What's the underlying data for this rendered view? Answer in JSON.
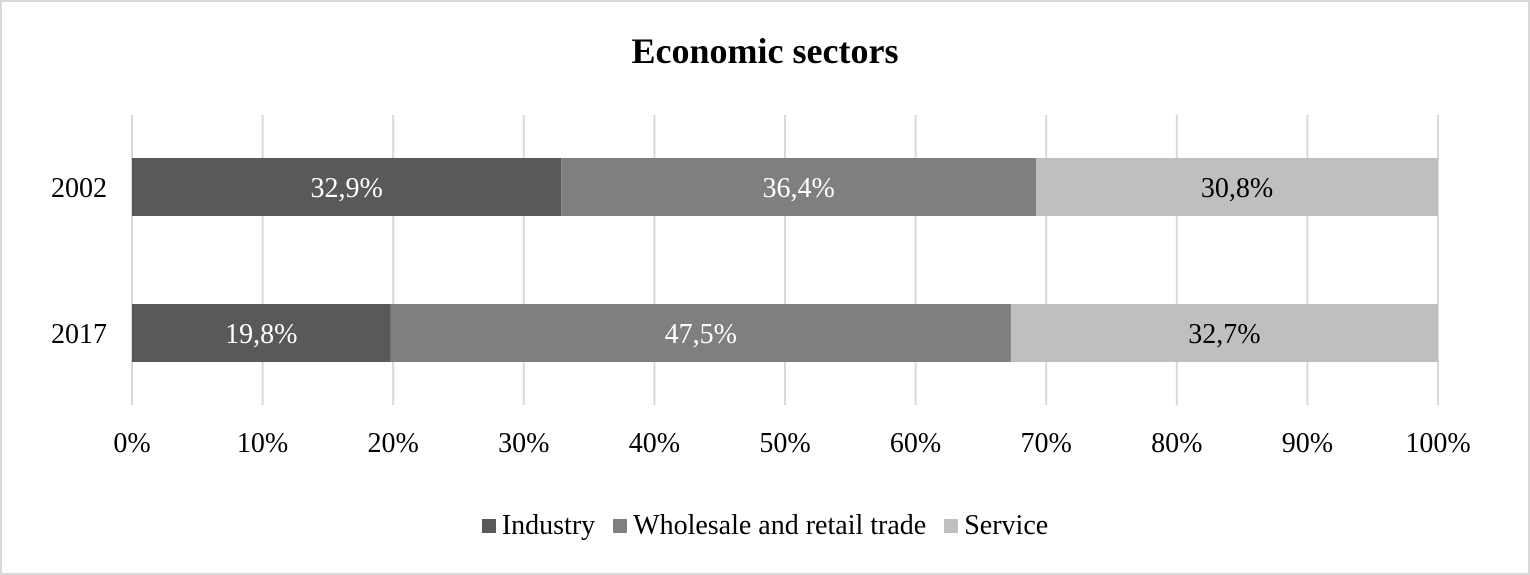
{
  "chart_data": {
    "type": "bar",
    "orientation": "horizontal",
    "stacked": "percent",
    "title": "Economic sectors",
    "categories": [
      "2002",
      "2017"
    ],
    "series": [
      {
        "name": "Industry",
        "color": "#595959",
        "values": [
          32.9,
          19.8
        ],
        "labels": [
          "32,9%",
          "19,8%"
        ],
        "label_color": "#ffffff"
      },
      {
        "name": "Wholesale and retail trade",
        "color": "#7f7f7f",
        "values": [
          36.4,
          47.5
        ],
        "labels": [
          "36,4%",
          "47,5%"
        ],
        "label_color": "#ffffff"
      },
      {
        "name": "Service",
        "color": "#bfbfbf",
        "values": [
          30.8,
          32.7
        ],
        "labels": [
          "30,8%",
          "32,7%"
        ],
        "label_color": "#000000"
      }
    ],
    "xlim": [
      0,
      100
    ],
    "xticks": [
      "0%",
      "10%",
      "20%",
      "30%",
      "40%",
      "50%",
      "60%",
      "70%",
      "80%",
      "90%",
      "100%"
    ],
    "grid": true,
    "legend_position": "bottom"
  }
}
